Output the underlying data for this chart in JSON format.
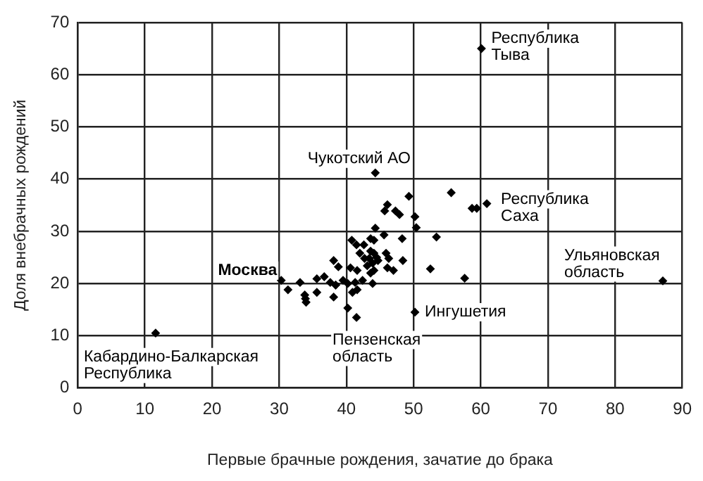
{
  "chart_data": {
    "type": "scatter",
    "xlabel": "Первые брачные рождения, зачатие до брака",
    "ylabel": "Доля внебрачных рождений",
    "x": [
      60.1,
      44.3,
      60.9,
      87.1,
      30.3,
      50.2,
      41.5,
      11.6,
      49.3,
      55.6,
      58.7,
      59.4,
      46.1,
      45.7,
      47.3,
      47.9,
      50.2,
      50.4,
      44.3,
      53.4,
      48.3,
      45.6,
      43.6,
      44.1,
      40.8,
      41.5,
      42.6,
      43.6,
      44.1,
      44.5,
      43.4,
      43.9,
      44.7,
      42.0,
      42.7,
      45.9,
      46.3,
      48.4,
      38.1,
      38.8,
      40.6,
      41.6,
      43.1,
      43.6,
      44.1,
      46.1,
      47.0,
      52.5,
      33.1,
      35.6,
      36.7,
      37.6,
      38.4,
      39.5,
      40.2,
      41.3,
      42.4,
      41.6,
      40.9,
      43.9,
      57.6,
      31.3,
      33.8,
      34.0,
      35.6,
      38.1,
      38.4,
      40.2,
      33.9
    ],
    "values": [
      65,
      41.2,
      35.3,
      20.5,
      20.6,
      14.5,
      13.5,
      10.5,
      36.7,
      37.4,
      34.4,
      34.4,
      35.1,
      33.9,
      33.9,
      33.2,
      32.8,
      30.7,
      30.6,
      28.9,
      28.6,
      29.3,
      28.6,
      28.3,
      28.3,
      27.4,
      27.4,
      26.2,
      25.8,
      25.0,
      24.8,
      23.9,
      24.4,
      25.8,
      24.8,
      25.8,
      24.8,
      24.4,
      24.4,
      23.2,
      23.0,
      22.5,
      23.4,
      22.0,
      22.5,
      23.0,
      22.5,
      22.8,
      20.2,
      20.9,
      21.3,
      20.2,
      19.7,
      20.6,
      20.0,
      20.2,
      20.6,
      18.8,
      18.3,
      20.0,
      21.0,
      18.8,
      17.8,
      16.4,
      18.3,
      17.4,
      19.7,
      15.3,
      17.1
    ],
    "color": "#000000",
    "marker": "diamond",
    "grid": true,
    "legend": false,
    "xlim": [
      0,
      90
    ],
    "xticks": [
      0,
      10,
      20,
      30,
      40,
      50,
      60,
      70,
      80,
      90
    ],
    "ylim": [
      0,
      70
    ],
    "yticks": [
      0,
      10,
      20,
      30,
      40,
      50,
      60,
      70
    ],
    "annotations": [
      {
        "text": "Республика\nТыва",
        "x": 60.1,
        "y": 65
      },
      {
        "text": "Чукотский АО",
        "x": 44.3,
        "y": 41.2
      },
      {
        "text": "Республика\nСаха",
        "x": 60.9,
        "y": 35.3
      },
      {
        "text": "Ульяновская\nобласть",
        "x": 87.1,
        "y": 20.5
      },
      {
        "text": "Москва",
        "x": 30.3,
        "y": 20.6
      },
      {
        "text": "Ингушетия",
        "x": 50.2,
        "y": 14.5
      },
      {
        "text": "Пензенская\nобласть",
        "x": 41.5,
        "y": 13.5
      },
      {
        "text": "Кабардино-Балкарская\nРеспублика",
        "x": 11.6,
        "y": 10.5
      }
    ]
  }
}
